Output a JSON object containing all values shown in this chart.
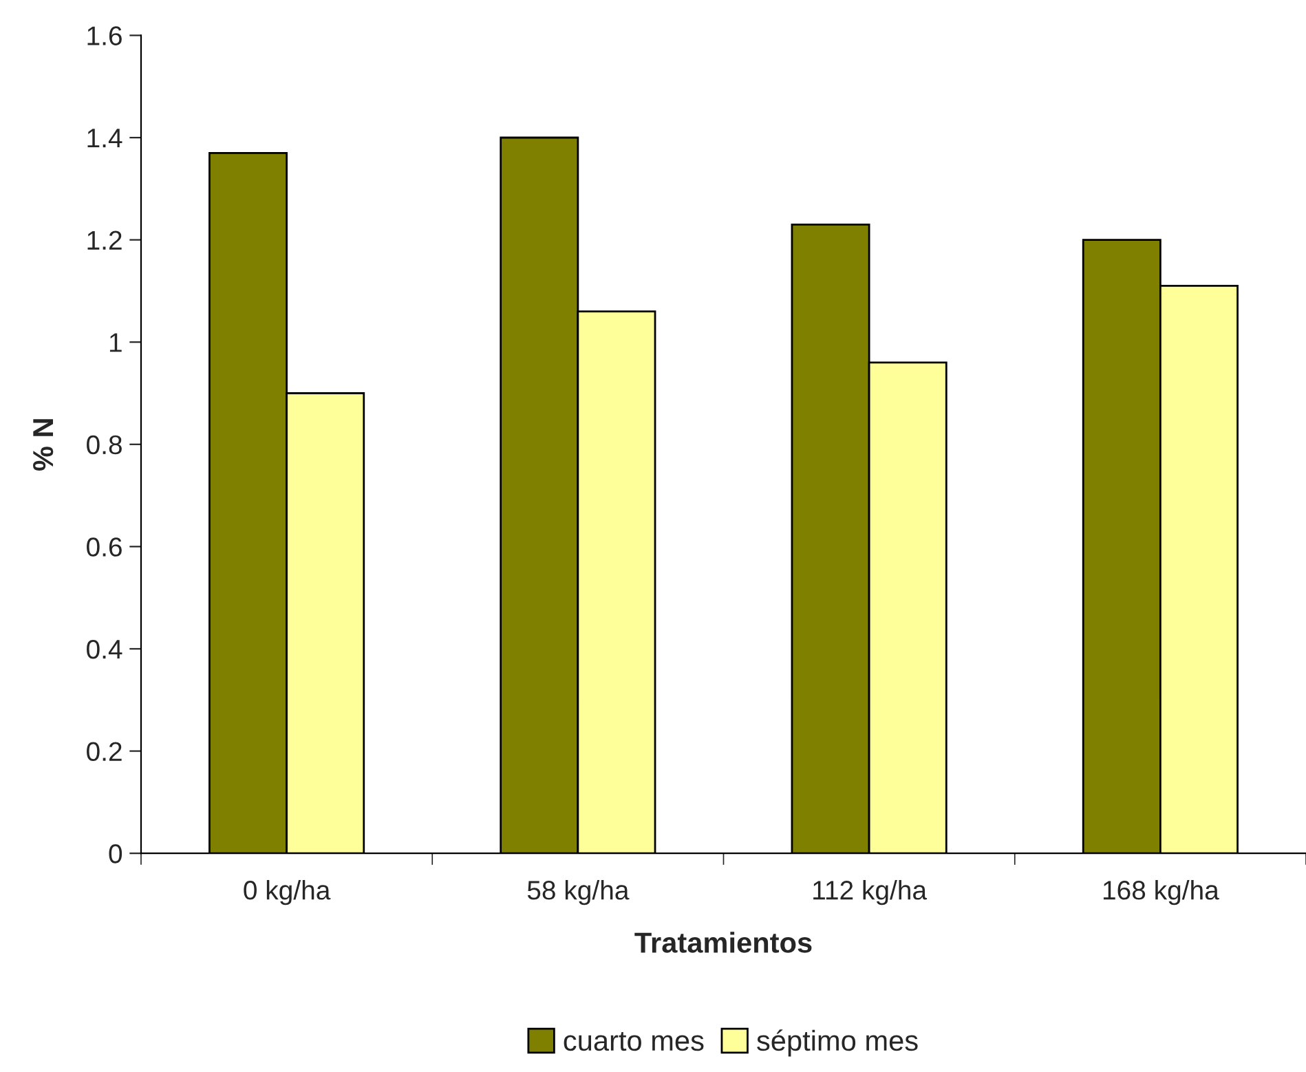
{
  "chart_data": {
    "type": "bar",
    "xlabel": "Tratamientos",
    "ylabel": "% N",
    "categories": [
      "0 kg/ha",
      "58 kg/ha",
      "112 kg/ha",
      "168 kg/ha"
    ],
    "series": [
      {
        "name": "cuarto mes",
        "color": "#808000",
        "values": [
          1.37,
          1.4,
          1.23,
          1.2
        ]
      },
      {
        "name": "séptimo mes",
        "color": "#ffff99",
        "values": [
          0.9,
          1.06,
          0.96,
          1.11
        ]
      }
    ],
    "ylim": [
      0,
      1.6
    ],
    "yticks": [
      0,
      0.2,
      0.4,
      0.6,
      0.8,
      1,
      1.2,
      1.4,
      1.6
    ],
    "grid": false,
    "legend": "bottom"
  }
}
